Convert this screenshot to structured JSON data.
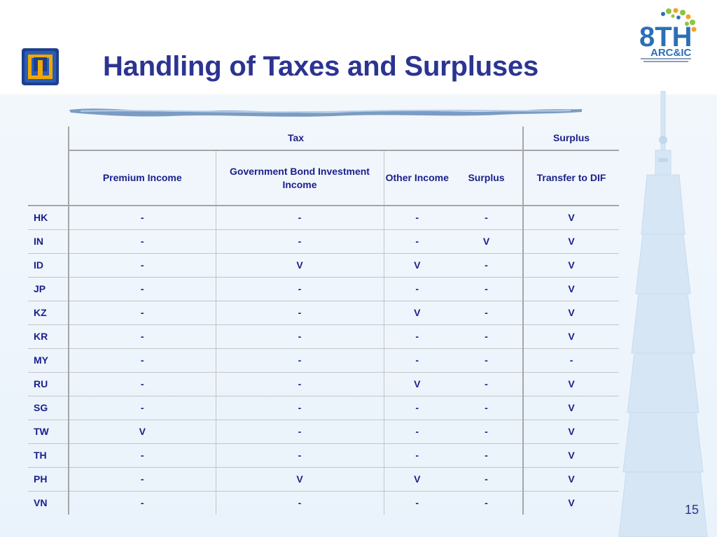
{
  "slide": {
    "title": "Handling of Taxes and Surpluses",
    "number": "15",
    "logo_left_icon": "organization-emblem-icon",
    "logo_right_icon": "8th-arc-ic-conference-logo",
    "logo_right": {
      "line1": "8TH",
      "line2": "ARC&IC"
    }
  },
  "table": {
    "group_headers": {
      "tax": "Tax",
      "surplus": "Surplus"
    },
    "columns": [
      "Premium Income",
      "Government Bond Investment Income",
      "Other Income",
      "Surplus",
      "Transfer to DIF"
    ],
    "rows": [
      {
        "code": "HK",
        "values": [
          "-",
          "-",
          "-",
          "-",
          "V"
        ]
      },
      {
        "code": "IN",
        "values": [
          "-",
          "-",
          "-",
          "V",
          "V"
        ]
      },
      {
        "code": "ID",
        "values": [
          "-",
          "V",
          "V",
          "-",
          "V"
        ]
      },
      {
        "code": "JP",
        "values": [
          "-",
          "-",
          "-",
          "-",
          "V"
        ]
      },
      {
        "code": "KZ",
        "values": [
          "-",
          "-",
          "V",
          "-",
          "V"
        ]
      },
      {
        "code": "KR",
        "values": [
          "-",
          "-",
          "-",
          "-",
          "V"
        ]
      },
      {
        "code": "MY",
        "values": [
          "-",
          "-",
          "-",
          "-",
          "-"
        ]
      },
      {
        "code": "RU",
        "values": [
          "-",
          "-",
          "V",
          "-",
          "V"
        ]
      },
      {
        "code": "SG",
        "values": [
          "-",
          "-",
          "-",
          "-",
          "V"
        ]
      },
      {
        "code": "TW",
        "values": [
          "V",
          "-",
          "-",
          "-",
          "V"
        ]
      },
      {
        "code": "TH",
        "values": [
          "-",
          "-",
          "-",
          "-",
          "V"
        ]
      },
      {
        "code": "PH",
        "values": [
          "-",
          "V",
          "V",
          "-",
          "V"
        ]
      },
      {
        "code": "VN",
        "values": [
          "-",
          "-",
          "-",
          "-",
          "V"
        ]
      }
    ]
  },
  "colors": {
    "title": "#2c3491",
    "table_text": "#1a1f8a",
    "brush": "#7a9cc4",
    "background_tint": "#eaf3fb",
    "logo_orange": "#f2a22a",
    "logo_green": "#8cc63f",
    "logo_blue": "#2c6fb7"
  }
}
